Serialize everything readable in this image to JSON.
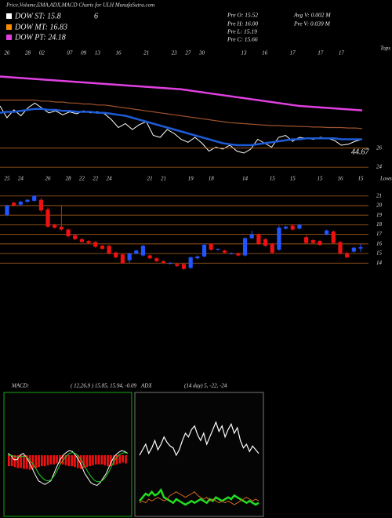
{
  "header": {
    "title": "Price,Volume,EMA,ADX,MACD Charts for ULH MunafaSutra.com",
    "legend": [
      {
        "label": "DOW ST: 15.8",
        "color": "#ffffff"
      },
      {
        "label": "DOW MT: 16.83",
        "color": "#ff8c00"
      },
      {
        "label": "DOW PT: 24.18",
        "color": "#e040e0"
      }
    ],
    "marker": "6",
    "stats": [
      "Pre O: 15.52",
      "Avg V: 0.002 M",
      "Pre H: 16.00",
      "Pre V: 0.039 M",
      "Pre L: 15.19",
      "Pre C: 15.66"
    ]
  },
  "chart_data": [
    {
      "type": "line",
      "annotation": "Tops",
      "ylim": [
        0,
        100
      ],
      "categories": [
        null,
        "26",
        null,
        null,
        "28",
        null,
        "02",
        null,
        null,
        null,
        "07",
        null,
        "09",
        null,
        "13",
        null,
        null,
        "16",
        null,
        null,
        null,
        "21",
        null,
        null,
        null,
        "23",
        null,
        "27",
        null,
        "30",
        null,
        null,
        null,
        null,
        null,
        "13",
        null,
        null,
        "16",
        null,
        null,
        null,
        "17",
        null,
        null,
        null,
        "17",
        null,
        null,
        "17",
        null,
        null,
        null
      ],
      "series": [
        {
          "color": "#e040e0",
          "width": 2.5,
          "values": [
            82,
            81.5,
            81,
            80.5,
            80,
            79.5,
            79,
            78.5,
            78,
            77.5,
            77,
            76.5,
            76,
            75.5,
            75,
            74.5,
            74,
            73.5,
            73,
            72.5,
            72,
            71.5,
            71,
            70.5,
            70,
            69.5,
            69,
            68,
            67,
            66,
            65,
            64,
            63,
            62,
            61,
            60,
            59,
            58,
            57,
            56,
            55,
            54,
            53,
            52,
            51.5,
            51,
            50.5,
            50,
            49.5,
            49,
            48.5,
            48,
            47.5
          ]
        },
        {
          "color": "#a0522d",
          "width": 1.2,
          "values": [
            58,
            58,
            58,
            58,
            58,
            58,
            57,
            57,
            56,
            56,
            55,
            55,
            54,
            54,
            53,
            53,
            52,
            51,
            50,
            49,
            48,
            47,
            46,
            45,
            44,
            43,
            42,
            41,
            40,
            39,
            38,
            37,
            36,
            35,
            34.5,
            34,
            33.5,
            33,
            32.5,
            32,
            32,
            31.5,
            31.5,
            31,
            31,
            30.5,
            30.5,
            30,
            30,
            30,
            29.5,
            29.5,
            29
          ]
        },
        {
          "color": "#ffffff",
          "width": 1,
          "values": [
            52,
            40,
            48,
            42,
            50,
            55,
            50,
            45,
            47,
            43,
            46,
            44,
            47,
            45,
            46,
            44,
            38,
            30,
            34,
            28,
            33,
            36,
            22,
            20,
            28,
            24,
            18,
            15,
            20,
            14,
            6,
            10,
            8,
            12,
            6,
            4,
            8,
            18,
            14,
            10,
            20,
            22,
            16,
            20,
            19,
            18,
            20,
            19,
            17,
            12,
            13,
            16,
            18
          ]
        },
        {
          "color": "#1e5bd6",
          "width": 2.5,
          "values": [
            45,
            46,
            46,
            47,
            48,
            49,
            49,
            48,
            48,
            47,
            47,
            46,
            46,
            46,
            45,
            45,
            44,
            43,
            42,
            40,
            38,
            36,
            34,
            32,
            30,
            28,
            26,
            24,
            22,
            20,
            18,
            16,
            14,
            13,
            12,
            12,
            12,
            13,
            14,
            15,
            16,
            17,
            18,
            18,
            19,
            19,
            19,
            19,
            19,
            18,
            18,
            18,
            18
          ]
        }
      ]
    },
    {
      "type": "candlestick",
      "annotations": [
        "44.67",
        "Lows"
      ],
      "ylim": [
        13.2,
        26.3
      ],
      "yticks": [
        14,
        15,
        16,
        17,
        18,
        19,
        20,
        21,
        24,
        26
      ],
      "grid_color": "#b5651d",
      "up_color": "#2255ff",
      "down_color": "#ee1111",
      "categories": [
        "25",
        null,
        "24",
        null,
        null,
        null,
        "26",
        null,
        null,
        "28",
        null,
        "22",
        null,
        "22",
        null,
        "24",
        null,
        null,
        null,
        null,
        null,
        "21",
        null,
        "21",
        null,
        null,
        null,
        "19",
        null,
        null,
        "18",
        null,
        null,
        null,
        null,
        "14",
        null,
        null,
        null,
        "15",
        null,
        null,
        "15",
        null,
        null,
        null,
        "15",
        null,
        null,
        "16",
        null,
        null,
        "15"
      ],
      "open": [
        19.0,
        20.3,
        20.1,
        20.4,
        20.5,
        20.6,
        19.6,
        18.0,
        17.8,
        17.5,
        16.9,
        16.5,
        16.3,
        16.2,
        15.8,
        15.8,
        15.1,
        14.9,
        14.3,
        15.0,
        14.8,
        14.8,
        14.5,
        14.2,
        14.0,
        13.9,
        13.9,
        13.5,
        14.5,
        14.7,
        16.0,
        15.4,
        15.3,
        15.0,
        15.0,
        14.8,
        16.6,
        17.0,
        16.5,
        16.0,
        15.4,
        17.6,
        17.9,
        17.6,
        16.7,
        16.4,
        16.3,
        17.0,
        17.3,
        16.2,
        15.0,
        15.2,
        15.52
      ],
      "high": [
        20.1,
        20.4,
        20.5,
        20.7,
        21.1,
        20.8,
        19.8,
        18.1,
        20.0,
        17.6,
        17.0,
        16.6,
        16.4,
        16.3,
        15.9,
        15.9,
        15.2,
        15.0,
        15.1,
        15.4,
        15.9,
        14.9,
        14.6,
        14.3,
        14.1,
        14.0,
        14.0,
        14.7,
        14.8,
        16.0,
        16.1,
        15.5,
        15.4,
        15.1,
        15.1,
        16.7,
        17.4,
        17.1,
        16.6,
        16.1,
        17.9,
        17.9,
        18.1,
        18.1,
        16.9,
        16.5,
        16.4,
        17.5,
        17.4,
        16.3,
        15.2,
        15.7,
        16.0
      ],
      "low": [
        18.9,
        19.9,
        20.0,
        20.3,
        20.4,
        19.3,
        17.7,
        17.6,
        17.4,
        16.7,
        16.4,
        16.1,
        16.0,
        15.6,
        15.4,
        14.9,
        14.5,
        13.9,
        14.0,
        14.9,
        14.7,
        14.4,
        14.1,
        13.9,
        13.9,
        13.6,
        13.3,
        13.4,
        14.4,
        14.6,
        15.3,
        15.3,
        15.0,
        14.9,
        14.7,
        14.7,
        16.5,
        15.9,
        15.7,
        15.0,
        15.3,
        17.5,
        17.4,
        17.5,
        16.0,
        16.0,
        15.8,
        16.9,
        16.0,
        14.9,
        14.5,
        15.1,
        15.19
      ],
      "close": [
        20.0,
        20.0,
        20.4,
        20.6,
        21.0,
        19.5,
        17.8,
        17.7,
        17.5,
        16.8,
        16.5,
        16.2,
        16.1,
        15.7,
        15.5,
        15.0,
        14.6,
        14.0,
        15.0,
        15.3,
        15.8,
        14.5,
        14.2,
        14.0,
        14.0,
        13.7,
        13.4,
        14.6,
        14.7,
        15.9,
        15.4,
        15.5,
        15.1,
        15.0,
        14.8,
        16.6,
        17.0,
        16.0,
        15.8,
        15.1,
        17.7,
        17.8,
        17.5,
        18.0,
        16.1,
        16.1,
        15.9,
        17.4,
        16.1,
        15.0,
        14.6,
        15.6,
        15.66
      ]
    },
    {
      "type": "macd",
      "title": "MACD:",
      "subtitle": "( 12,26,9 ) 15.85, 15.94, -0.09",
      "ylim": [
        -0.6,
        0.6
      ],
      "border_color": "#11aa11",
      "histogram": {
        "color": "#ee1111",
        "values": [
          -0.12,
          -0.12,
          -0.13,
          -0.14,
          -0.14,
          -0.15,
          -0.15,
          -0.16,
          -0.15,
          -0.14,
          -0.13,
          -0.12,
          -0.12,
          -0.11,
          -0.1,
          -0.1,
          -0.09,
          -0.09,
          -0.1,
          -0.11,
          -0.12,
          -0.12,
          -0.13,
          -0.14,
          -0.15,
          -0.14,
          -0.13,
          -0.12,
          -0.11,
          -0.1,
          -0.1,
          -0.1,
          -0.11,
          -0.12,
          -0.12,
          -0.11,
          -0.1,
          -0.09,
          -0.08,
          -0.09
        ]
      },
      "series": [
        {
          "color": "#ffffff",
          "width": 1,
          "values": [
            0.02,
            0.0,
            -0.05,
            -0.05,
            0.0,
            0.02,
            -0.02,
            -0.08,
            -0.15,
            -0.22,
            -0.28,
            -0.3,
            -0.32,
            -0.3,
            -0.28,
            -0.2,
            -0.12,
            -0.05,
            0.0,
            0.03,
            0.05,
            0.04,
            0.0,
            -0.05,
            -0.12,
            -0.2,
            -0.25,
            -0.3,
            -0.32,
            -0.33,
            -0.3,
            -0.25,
            -0.2,
            -0.12,
            -0.05,
            0.0,
            0.03,
            0.05,
            0.04,
            0.02
          ]
        },
        {
          "color": "#22cc22",
          "width": 1,
          "values": [
            0.0,
            0.0,
            -0.01,
            -0.02,
            -0.02,
            -0.01,
            -0.02,
            -0.05,
            -0.09,
            -0.14,
            -0.2,
            -0.24,
            -0.27,
            -0.28,
            -0.27,
            -0.23,
            -0.17,
            -0.1,
            -0.05,
            -0.01,
            0.02,
            0.03,
            0.02,
            -0.01,
            -0.06,
            -0.12,
            -0.18,
            -0.23,
            -0.27,
            -0.29,
            -0.29,
            -0.27,
            -0.23,
            -0.17,
            -0.1,
            -0.04,
            0.0,
            0.02,
            0.03,
            0.02
          ]
        }
      ]
    },
    {
      "type": "line",
      "title": "ADX",
      "subtitle": "(14 day) 5, -22, -24",
      "ylim": [
        0,
        60
      ],
      "border_color": "#777777",
      "series": [
        {
          "color": "#ffffff",
          "width": 1.2,
          "values": [
            30,
            33,
            36,
            31,
            34,
            38,
            33,
            36,
            40,
            37,
            35,
            34,
            30,
            33,
            38,
            42,
            40,
            44,
            46,
            41,
            38,
            42,
            36,
            40,
            44,
            48,
            43,
            46,
            40,
            44,
            47,
            42,
            45,
            38,
            34,
            36,
            32,
            35,
            33,
            31
          ]
        },
        {
          "color": "#22dd22",
          "width": 2.5,
          "values": [
            5,
            7,
            9,
            8,
            10,
            8,
            9,
            11,
            7,
            6,
            5,
            4,
            6,
            5,
            4,
            3,
            4,
            5,
            4,
            5,
            6,
            5,
            4,
            6,
            5,
            7,
            6,
            5,
            6,
            7,
            6,
            8,
            7,
            6,
            5,
            4,
            5,
            4,
            3,
            4
          ]
        },
        {
          "color": "#d2691e",
          "width": 1,
          "values": [
            4,
            5,
            4,
            6,
            5,
            6,
            7,
            6,
            5,
            6,
            8,
            9,
            10,
            9,
            8,
            7,
            8,
            9,
            10,
            8,
            7,
            6,
            7,
            5,
            6,
            5,
            4,
            5,
            4,
            5,
            4,
            3,
            4,
            5,
            6,
            7,
            6,
            5,
            6,
            5
          ]
        }
      ]
    }
  ]
}
